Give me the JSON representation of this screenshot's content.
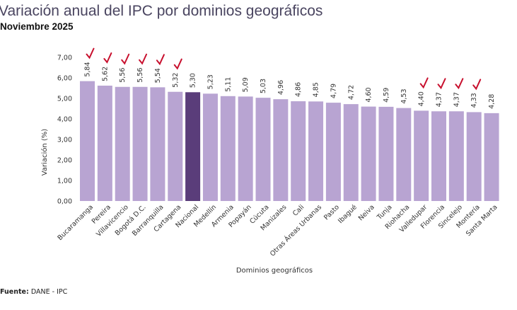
{
  "title": "Variación anual del IPC por dominios geográficos",
  "subtitle": "Noviembre 2025",
  "source_label": "Fuente:",
  "source_text": "DANE - IPC",
  "colors": {
    "bar": "#b8a4d2",
    "highlight": "#5a3d7a",
    "check": "#c8102e",
    "text": "#333333"
  },
  "chart_data": {
    "type": "bar",
    "title": "Variación anual del IPC por dominios geográficos",
    "subtitle": "Noviembre 2025",
    "xlabel": "Dominios geográficos",
    "ylabel": "Variación (%)",
    "ylim": [
      0,
      7
    ],
    "yticks": [
      "0,00",
      "1,00",
      "2,00",
      "3,00",
      "4,00",
      "5,00",
      "6,00",
      "7,00"
    ],
    "grid": false,
    "highlight_category": "Nacional",
    "categories": [
      "Bucaramanga",
      "Pereira",
      "Villavicencio",
      "Bogotá D.C.",
      "Barranquilla",
      "Cartagena",
      "Nacional",
      "Medellín",
      "Armenia",
      "Popayán",
      "Cúcuta",
      "Manizales",
      "Cali",
      "Otras Áreas Urbanas",
      "Pasto",
      "Ibagué",
      "Neiva",
      "Tunja",
      "Riohacha",
      "Valledupar",
      "Florencia",
      "Sincelejo",
      "Montería",
      "Santa Marta"
    ],
    "values": [
      5.84,
      5.62,
      5.56,
      5.56,
      5.54,
      5.32,
      5.3,
      5.23,
      5.11,
      5.09,
      5.03,
      4.96,
      4.86,
      4.85,
      4.79,
      4.72,
      4.6,
      4.59,
      4.53,
      4.4,
      4.37,
      4.37,
      4.33,
      4.28
    ],
    "data_labels": [
      "5,84",
      "5,62",
      "5,56",
      "5,56",
      "5,54",
      "5,32",
      "5,30",
      "5,23",
      "5,11",
      "5,09",
      "5,03",
      "4,96",
      "4,86",
      "4,85",
      "4,79",
      "4,72",
      "4,60",
      "4,59",
      "4,53",
      "4,40",
      "4,37",
      "4,37",
      "4,33",
      "4,28"
    ],
    "annotations": {
      "handwritten_checkmarks_on": [
        "Bucaramanga",
        "Pereira",
        "Villavicencio",
        "Bogotá D.C.",
        "Barranquilla",
        "Cartagena",
        "Valledupar",
        "Florencia",
        "Sincelejo",
        "Montería"
      ]
    }
  }
}
